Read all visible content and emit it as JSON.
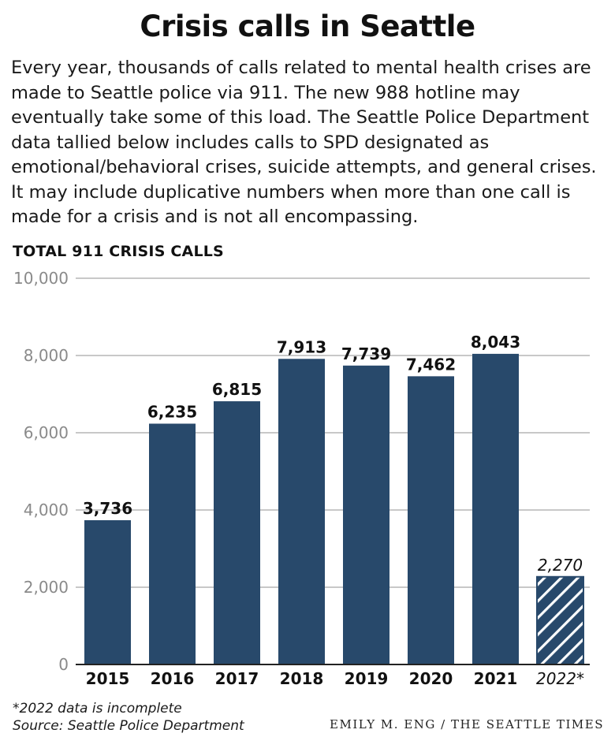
{
  "title": "Crisis calls in Seattle",
  "intro": "Every year, thousands of calls related to mental health crises are made to Seattle police via 911. The new 988 hotline may eventually take some of this load. The Seattle Police Department data tallied below includes calls to SPD designated as emotional/behavioral crises, suicide attempts, and general crises. It may include duplicative numbers when more than one call is made for a crisis and is not all encompassing.",
  "footnote": "*2022 data is incomplete",
  "source": "Source: Seattle Police Department",
  "credit": "EMILY M. ENG / THE SEATTLE TIMES",
  "colors": {
    "bar": "#28496b",
    "grid": "#b5b5b5",
    "tick": "#8a8a8a"
  },
  "chart_data": {
    "type": "bar",
    "title": "TOTAL 911 CRISIS CALLS",
    "categories": [
      "2015",
      "2016",
      "2017",
      "2018",
      "2019",
      "2020",
      "2021",
      "2022*"
    ],
    "values": [
      3736,
      6235,
      6815,
      7913,
      7739,
      7462,
      8043,
      2270
    ],
    "value_labels": [
      "3,736",
      "6,235",
      "6,815",
      "7,913",
      "7,739",
      "7,462",
      "8,043",
      "2,270"
    ],
    "incomplete": [
      false,
      false,
      false,
      false,
      false,
      false,
      false,
      true
    ],
    "ylim": [
      0,
      10000
    ],
    "yticks": [
      0,
      2000,
      4000,
      6000,
      8000,
      10000
    ],
    "ytick_labels": [
      "0",
      "2,000",
      "4,000",
      "6,000",
      "8,000",
      "10,000"
    ],
    "grid": true
  }
}
